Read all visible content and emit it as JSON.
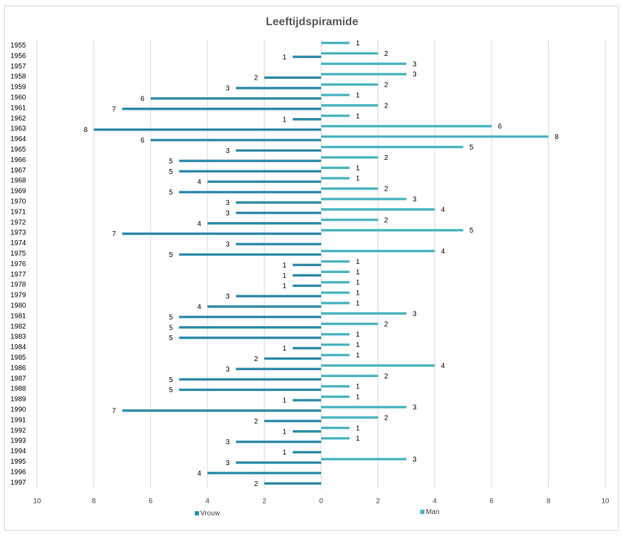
{
  "chart_data": {
    "type": "bar",
    "orientation": "horizontal-diverging",
    "title": "Leeftijdspiramide",
    "xlabel": "",
    "ylabel": "",
    "xlim": [
      -10,
      10
    ],
    "x_ticks": [
      -10,
      -8,
      -6,
      -4,
      -2,
      0,
      2,
      4,
      6,
      8,
      10
    ],
    "x_tick_labels": [
      "10",
      "8",
      "6",
      "4",
      "2",
      "0",
      "2",
      "4",
      "6",
      "8",
      "10"
    ],
    "grid": "vertical",
    "legend_position": "bottom",
    "categories": [
      "1955",
      "1956",
      "1957",
      "1958",
      "1959",
      "1960",
      "1961",
      "1962",
      "1963",
      "1964",
      "1965",
      "1966",
      "1967",
      "1968",
      "1969",
      "1970",
      "1971",
      "1972",
      "1973",
      "1974",
      "1975",
      "1976",
      "1977",
      "1978",
      "1979",
      "1980",
      "1981",
      "1982",
      "1983",
      "1984",
      "1985",
      "1986",
      "1987",
      "1988",
      "1989",
      "1990",
      "1991",
      "1992",
      "1993",
      "1994",
      "1995",
      "1996",
      "1997"
    ],
    "series": [
      {
        "name": "Vrouw",
        "color": "#2E8BA9",
        "direction": "left",
        "values": [
          null,
          1,
          null,
          2,
          3,
          6,
          7,
          1,
          8,
          6,
          3,
          5,
          5,
          4,
          5,
          3,
          3,
          4,
          7,
          3,
          5,
          1,
          1,
          1,
          3,
          4,
          5,
          5,
          5,
          1,
          2,
          3,
          5,
          5,
          1,
          7,
          2,
          1,
          3,
          1,
          3,
          4,
          2
        ],
        "labels": [
          "",
          "1",
          "",
          "2",
          "3",
          "6",
          "7",
          "1",
          "8",
          "6",
          "3",
          "5",
          "5",
          "4",
          "5",
          "3",
          "3",
          "4",
          "7",
          "3",
          "5",
          "1",
          "1",
          "1",
          "3",
          "4",
          "5",
          "5",
          "5",
          "1",
          "2",
          "3",
          "5",
          "5",
          "1",
          "7",
          "2",
          "1",
          "3",
          "1",
          "3",
          "4",
          "2"
        ]
      },
      {
        "name": "Man",
        "color": "#4BB5C1",
        "direction": "right",
        "values": [
          1,
          2,
          3,
          3,
          2,
          1,
          2,
          1,
          6,
          8,
          5,
          2,
          1,
          1,
          2,
          3,
          4,
          2,
          5,
          null,
          4,
          1,
          1,
          1,
          1,
          1,
          3,
          2,
          1,
          1,
          1,
          4,
          2,
          1,
          1,
          3,
          2,
          1,
          1,
          null,
          3,
          null,
          null
        ],
        "labels": [
          "1",
          "2",
          "3",
          "3",
          "2",
          "1",
          "2",
          "1",
          "6",
          "8",
          "5",
          "2",
          "1",
          "1",
          "2",
          "3",
          "4",
          "2",
          "5",
          "",
          "4",
          "1",
          "1",
          "1",
          "1",
          "1",
          "3",
          "2",
          "1",
          "1",
          "1",
          "4",
          "2",
          "1",
          "1",
          "3",
          "2",
          "1",
          "1",
          "",
          "3",
          "",
          ""
        ]
      }
    ]
  }
}
